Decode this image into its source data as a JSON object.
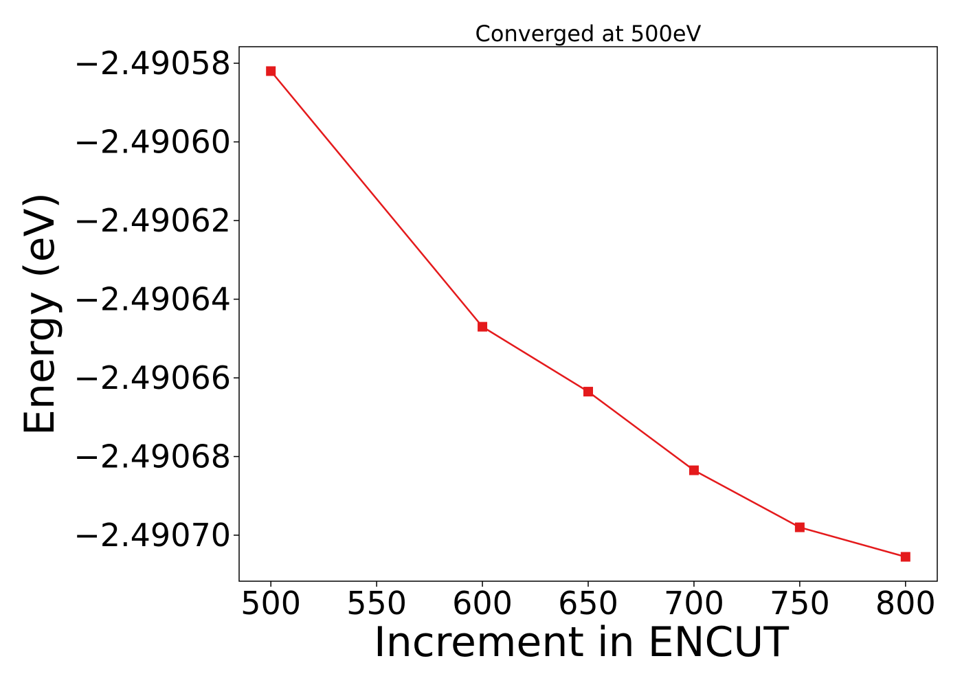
{
  "chart_data": {
    "type": "line",
    "title": "Converged at 500eV",
    "xlabel": "Increment in ENCUT",
    "ylabel": "Energy (eV)",
    "x": [
      500,
      600,
      650,
      700,
      750,
      800
    ],
    "series": [
      {
        "values": [
          -2.490582,
          -2.490647,
          -2.4906635,
          -2.4906835,
          -2.490698,
          -2.4907055
        ],
        "color": "#e41a1c",
        "marker": "square"
      }
    ],
    "xlim": [
      485,
      815
    ],
    "ylim": [
      -2.4907117,
      -2.4905758
    ],
    "xticks": [
      500,
      550,
      600,
      650,
      700,
      750,
      800
    ],
    "xtick_labels": [
      "500",
      "550",
      "600",
      "650",
      "700",
      "750",
      "800"
    ],
    "yticks": [
      -2.49058,
      -2.4906,
      -2.49062,
      -2.49064,
      -2.49066,
      -2.49068,
      -2.4907
    ],
    "ytick_labels": [
      "−2.49058",
      "−2.49060",
      "−2.49062",
      "−2.49064",
      "−2.49066",
      "−2.49068",
      "−2.49070"
    ],
    "grid": false,
    "legend": false
  }
}
